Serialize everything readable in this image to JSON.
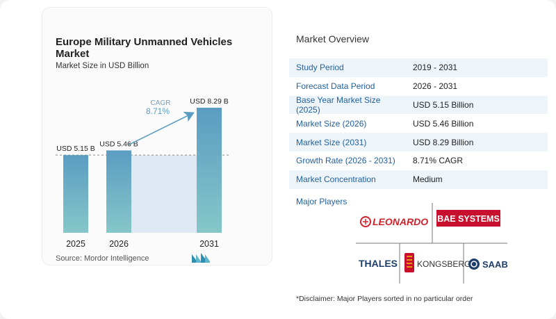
{
  "chart": {
    "title": "Europe Military Unmanned Vehicles Market",
    "subtitle": "Market Size in USD Billion",
    "source": "Source:  Mordor Intelligence",
    "cagr_label": "CAGR",
    "cagr_value": "8.71%"
  },
  "chart_data": {
    "type": "bar",
    "categories": [
      "2025",
      "2026",
      "2031"
    ],
    "values": [
      5.15,
      5.46,
      8.29
    ],
    "data_labels": [
      "USD 5.15 B",
      "USD 5.46 B",
      "USD 8.29 B"
    ],
    "title": "Europe Military Unmanned Vehicles Market",
    "subtitle": "Market Size in USD Billion",
    "ylabel": "",
    "xlabel": "",
    "ylim": [
      0,
      8.29
    ],
    "grid": false,
    "annotation": "CAGR 8.71%"
  },
  "overview": {
    "title": "Market Overview",
    "rows": [
      {
        "label": "Study Period",
        "value": "2019 - 2031"
      },
      {
        "label": "Forecast Data Period",
        "value": "2026 - 2031"
      },
      {
        "label": "Base Year Market Size (2025)",
        "value": "USD 5.15 Billion"
      },
      {
        "label": "Market Size (2026)",
        "value": "USD 5.46 Billion"
      },
      {
        "label": "Market Size (2031)",
        "value": "USD 8.29 Billion"
      },
      {
        "label": "Growth Rate (2026 - 2031)",
        "value": "8.71% CAGR"
      },
      {
        "label": "Market Concentration",
        "value": "Medium"
      }
    ]
  },
  "players": {
    "title": "Major Players",
    "logos": [
      "LEONARDO",
      "BAE SYSTEMS",
      "THALES",
      "KONGSBERG",
      "SAAB"
    ]
  },
  "disclaimer": "*Disclaimer: Major Players sorted in no particular order",
  "colors": {
    "bar_top": "#5b9cc2",
    "bar_bottom": "#86c7c9",
    "highlight_band": "#dfe9f3",
    "label_blue": "#1f5f9e",
    "leonardo_red": "#d0222b",
    "bae_red": "#c8102e",
    "thales_blue": "#1e3d6b"
  }
}
